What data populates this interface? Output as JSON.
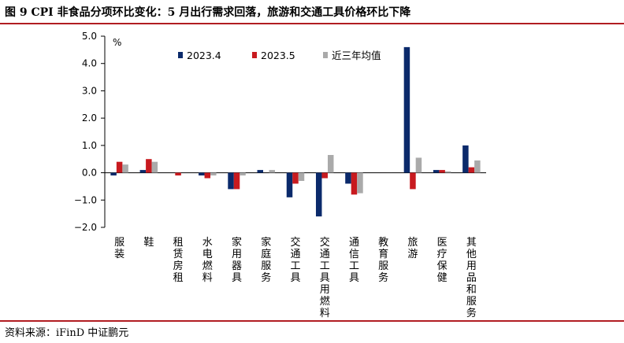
{
  "figure": {
    "title": "图 9    CPI 非食品分项环比变化：5 月出行需求回落，旅游和交通工具价格环比下降",
    "source": "资料来源：iFinD    中证鹏元"
  },
  "chart_data": {
    "type": "bar",
    "unit_label": "%",
    "ylim": [
      -2.0,
      5.0
    ],
    "yticks": [
      "5.0",
      "4.0",
      "3.0",
      "2.0",
      "1.0",
      "0.0",
      "−1.0",
      "−2.0"
    ],
    "ytick_values": [
      5,
      4,
      3,
      2,
      1,
      0,
      -1,
      -2
    ],
    "categories": [
      "服装",
      "鞋",
      "租赁房租",
      "水电燃料",
      "家用器具",
      "家庭服务",
      "交通工具",
      "交通工具用燃料",
      "通信工具",
      "教育服务",
      "旅游",
      "医疗保健",
      "其他用品和服务"
    ],
    "series": [
      {
        "name": "2023.4",
        "color": "#0b2a6b",
        "values": [
          -0.1,
          0.1,
          0.0,
          -0.1,
          -0.6,
          0.1,
          -0.9,
          -1.6,
          -0.4,
          0.0,
          4.6,
          0.1,
          1.0
        ]
      },
      {
        "name": "2023.5",
        "color": "#c81a1f",
        "values": [
          0.4,
          0.5,
          -0.1,
          -0.2,
          -0.6,
          0.0,
          -0.4,
          -0.2,
          -0.8,
          0.0,
          -0.6,
          0.1,
          0.2
        ]
      },
      {
        "name": "近三年均值",
        "color": "#aaaaaa",
        "values": [
          0.3,
          0.4,
          0.0,
          -0.1,
          -0.1,
          0.1,
          -0.3,
          0.65,
          -0.75,
          0.0,
          0.55,
          0.05,
          0.45
        ]
      }
    ],
    "legend_position": "top"
  }
}
